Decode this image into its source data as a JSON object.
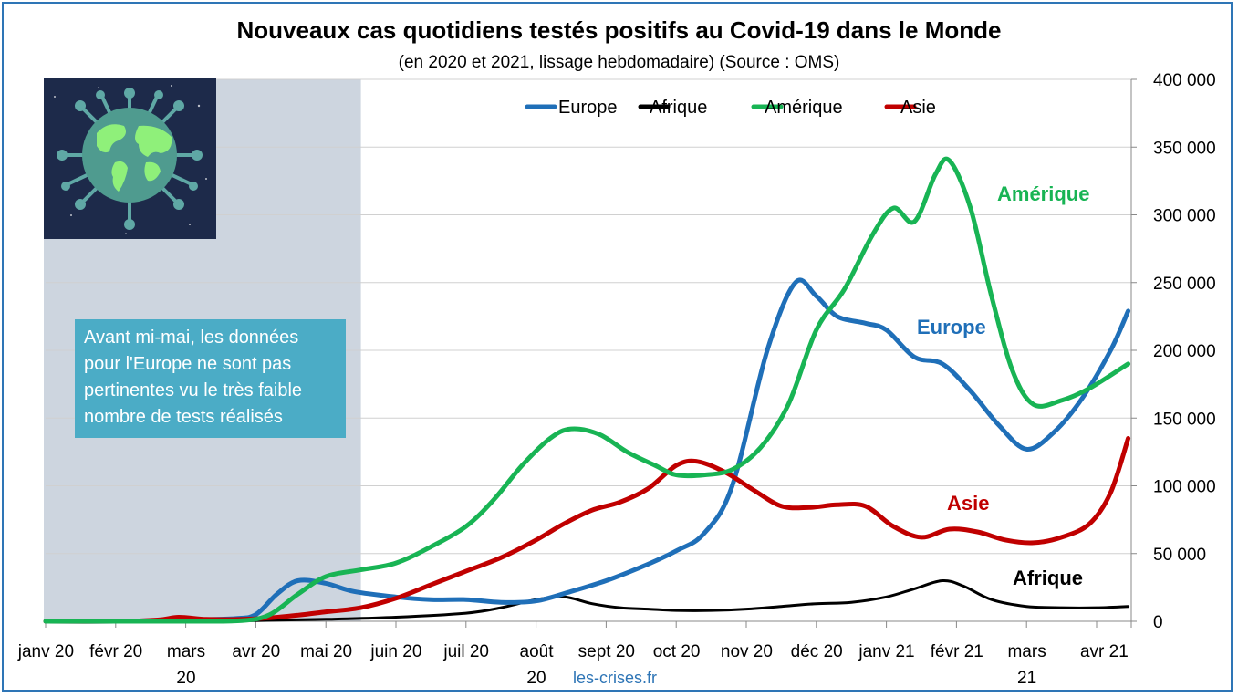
{
  "chart_data": {
    "type": "line",
    "title": "Nouveaux cas quotidiens testés positifs au Covid-19 dans le Monde",
    "subtitle": "(en 2020 et 2021, lissage hebdomadaire) (Source : OMS)",
    "x_tick_labels": [
      [
        "janv 20"
      ],
      [
        "févr 20"
      ],
      [
        "mars",
        "20"
      ],
      [
        "avr 20"
      ],
      [
        "mai 20"
      ],
      [
        "juin 20"
      ],
      [
        "juil 20"
      ],
      [
        "août",
        "20"
      ],
      [
        "sept 20"
      ],
      [
        "oct 20"
      ],
      [
        "nov 20"
      ],
      [
        "déc 20"
      ],
      [
        "janv 21"
      ],
      [
        "févr 21"
      ],
      [
        "mars",
        "21"
      ],
      [
        "avr 21"
      ]
    ],
    "y_tick_labels": [
      "0",
      "50 000",
      "100 000",
      "150 000",
      "200 000",
      "250 000",
      "300 000",
      "350 000",
      "400 000"
    ],
    "ylim": [
      0,
      400000
    ],
    "y_axis_position": "right",
    "grid": true,
    "legend_position": "top",
    "shaded_region": {
      "from_month": 0,
      "to_month": 4.5,
      "color": "#cdd5df"
    },
    "note": "Avant mi-mai, les données pour l'Europe ne sont pas pertinentes vu le très faible nombre de tests réalisés",
    "source_text": "les-crises.fr",
    "series": [
      {
        "name": "Europe",
        "color": "#1f6fb8",
        "annotation": "Europe",
        "points": [
          [
            0,
            0
          ],
          [
            1,
            0
          ],
          [
            2,
            1000
          ],
          [
            2.7,
            2000
          ],
          [
            3.0,
            5000
          ],
          [
            3.3,
            20000
          ],
          [
            3.6,
            30000
          ],
          [
            4.0,
            28000
          ],
          [
            4.4,
            22000
          ],
          [
            5.0,
            18000
          ],
          [
            5.5,
            16000
          ],
          [
            6.0,
            16000
          ],
          [
            6.5,
            14000
          ],
          [
            7.0,
            15000
          ],
          [
            7.5,
            22000
          ],
          [
            8.0,
            30000
          ],
          [
            8.5,
            40000
          ],
          [
            9.0,
            52000
          ],
          [
            9.4,
            65000
          ],
          [
            9.8,
            100000
          ],
          [
            10.3,
            200000
          ],
          [
            10.7,
            250000
          ],
          [
            11.0,
            240000
          ],
          [
            11.3,
            225000
          ],
          [
            11.7,
            220000
          ],
          [
            12.0,
            215000
          ],
          [
            12.4,
            195000
          ],
          [
            12.8,
            190000
          ],
          [
            13.2,
            170000
          ],
          [
            13.6,
            145000
          ],
          [
            14.0,
            127000
          ],
          [
            14.4,
            140000
          ],
          [
            14.8,
            165000
          ],
          [
            15.2,
            200000
          ],
          [
            15.45,
            229000
          ]
        ]
      },
      {
        "name": "Afrique",
        "color": "#000000",
        "annotation": "Afrique",
        "points": [
          [
            0,
            0
          ],
          [
            2,
            0
          ],
          [
            3,
            500
          ],
          [
            4,
            1500
          ],
          [
            5,
            3000
          ],
          [
            6,
            6000
          ],
          [
            6.5,
            10000
          ],
          [
            7.0,
            16000
          ],
          [
            7.4,
            18000
          ],
          [
            7.8,
            13000
          ],
          [
            8.2,
            10000
          ],
          [
            8.6,
            9000
          ],
          [
            9,
            8000
          ],
          [
            9.5,
            8000
          ],
          [
            10,
            9000
          ],
          [
            10.5,
            11000
          ],
          [
            11,
            13000
          ],
          [
            11.5,
            14000
          ],
          [
            12,
            18000
          ],
          [
            12.4,
            24000
          ],
          [
            12.8,
            30000
          ],
          [
            13.1,
            26000
          ],
          [
            13.5,
            16000
          ],
          [
            14,
            11000
          ],
          [
            14.5,
            10000
          ],
          [
            15,
            10000
          ],
          [
            15.45,
            11000
          ]
        ]
      },
      {
        "name": "Amérique",
        "color": "#18b454",
        "annotation": "Amérique",
        "points": [
          [
            0,
            0
          ],
          [
            1,
            0
          ],
          [
            2,
            0
          ],
          [
            2.8,
            500
          ],
          [
            3.2,
            5000
          ],
          [
            3.6,
            20000
          ],
          [
            4.0,
            33000
          ],
          [
            4.5,
            38000
          ],
          [
            5.0,
            43000
          ],
          [
            5.5,
            55000
          ],
          [
            6.0,
            70000
          ],
          [
            6.4,
            90000
          ],
          [
            6.8,
            115000
          ],
          [
            7.2,
            135000
          ],
          [
            7.5,
            142000
          ],
          [
            7.9,
            138000
          ],
          [
            8.3,
            125000
          ],
          [
            8.7,
            115000
          ],
          [
            9.0,
            108000
          ],
          [
            9.4,
            108000
          ],
          [
            9.8,
            112000
          ],
          [
            10.2,
            128000
          ],
          [
            10.6,
            160000
          ],
          [
            11.0,
            215000
          ],
          [
            11.4,
            245000
          ],
          [
            11.8,
            285000
          ],
          [
            12.1,
            305000
          ],
          [
            12.4,
            295000
          ],
          [
            12.7,
            330000
          ],
          [
            12.9,
            340000
          ],
          [
            13.2,
            305000
          ],
          [
            13.5,
            240000
          ],
          [
            13.8,
            185000
          ],
          [
            14.1,
            160000
          ],
          [
            14.5,
            163000
          ],
          [
            14.9,
            172000
          ],
          [
            15.45,
            190000
          ]
        ]
      },
      {
        "name": "Asie",
        "color": "#c00000",
        "annotation": "Asie",
        "points": [
          [
            0,
            0
          ],
          [
            1,
            0
          ],
          [
            1.6,
            1000
          ],
          [
            1.9,
            3000
          ],
          [
            2.3,
            1500
          ],
          [
            2.8,
            1500
          ],
          [
            3.2,
            2500
          ],
          [
            3.6,
            4500
          ],
          [
            4,
            7000
          ],
          [
            4.5,
            10000
          ],
          [
            5.0,
            17000
          ],
          [
            5.5,
            27000
          ],
          [
            6.0,
            37000
          ],
          [
            6.5,
            47000
          ],
          [
            7.0,
            60000
          ],
          [
            7.4,
            72000
          ],
          [
            7.8,
            82000
          ],
          [
            8.2,
            88000
          ],
          [
            8.6,
            98000
          ],
          [
            9.0,
            115000
          ],
          [
            9.3,
            118000
          ],
          [
            9.7,
            110000
          ],
          [
            10.1,
            97000
          ],
          [
            10.5,
            85000
          ],
          [
            10.9,
            84000
          ],
          [
            11.3,
            86000
          ],
          [
            11.7,
            85000
          ],
          [
            12.1,
            70000
          ],
          [
            12.5,
            62000
          ],
          [
            12.9,
            68000
          ],
          [
            13.3,
            66000
          ],
          [
            13.7,
            60000
          ],
          [
            14.1,
            58000
          ],
          [
            14.5,
            62000
          ],
          [
            14.9,
            72000
          ],
          [
            15.2,
            95000
          ],
          [
            15.45,
            135000
          ]
        ]
      }
    ]
  }
}
